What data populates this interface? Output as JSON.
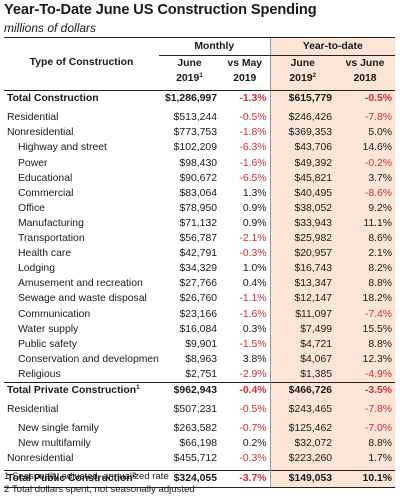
{
  "title": "Year-To-Date June US Construction Spending",
  "subtitle": "millions of dollars",
  "headers": {
    "type": "Type of Construction",
    "monthly": "Monthly",
    "ytd": "Year-to-date",
    "col1_line1": "June",
    "col1_line2": "2019",
    "col1_sup": "1",
    "col2_line1": "vs May",
    "col2_line2": "2019",
    "col3_line1": "June",
    "col3_line2": "2019",
    "col3_sup": "2",
    "col4_line1": "vs June",
    "col4_line2": "2018"
  },
  "rows": [
    {
      "label": "Total Construction",
      "sup": "",
      "june": "$1,286,997",
      "vsmay": "-1.3%",
      "ytd": "$615,779",
      "vsjune": "-0.5%",
      "bold": true,
      "indent": false
    },
    {
      "label": "Residential",
      "sup": "",
      "june": "$513,244",
      "vsmay": "-0.5%",
      "ytd": "$246,426",
      "vsjune": "-7.8%",
      "bold": false,
      "indent": false
    },
    {
      "label": "Nonresidential",
      "sup": "",
      "june": "$773,753",
      "vsmay": "-1.8%",
      "ytd": "$369,353",
      "vsjune": "5.0%",
      "bold": false,
      "indent": false
    },
    {
      "label": "Highway and street",
      "sup": "",
      "june": "$102,209",
      "vsmay": "-6.3%",
      "ytd": "$43,706",
      "vsjune": "14.6%",
      "bold": false,
      "indent": true
    },
    {
      "label": "Power",
      "sup": "",
      "june": "$98,430",
      "vsmay": "-1.6%",
      "ytd": "$49,392",
      "vsjune": "-0.2%",
      "bold": false,
      "indent": true
    },
    {
      "label": "Educational",
      "sup": "",
      "june": "$90,672",
      "vsmay": "-6.5%",
      "ytd": "$45,821",
      "vsjune": "3.7%",
      "bold": false,
      "indent": true
    },
    {
      "label": "Commercial",
      "sup": "",
      "june": "$83,064",
      "vsmay": "1.3%",
      "ytd": "$40,495",
      "vsjune": "-8.6%",
      "bold": false,
      "indent": true
    },
    {
      "label": "Office",
      "sup": "",
      "june": "$78,950",
      "vsmay": "0.9%",
      "ytd": "$38,052",
      "vsjune": "9.2%",
      "bold": false,
      "indent": true
    },
    {
      "label": "Manufacturing",
      "sup": "",
      "june": "$71,132",
      "vsmay": "0.9%",
      "ytd": "$33,943",
      "vsjune": "11.1%",
      "bold": false,
      "indent": true
    },
    {
      "label": "Transportation",
      "sup": "",
      "june": "$56,787",
      "vsmay": "-2.1%",
      "ytd": "$25,982",
      "vsjune": "8.6%",
      "bold": false,
      "indent": true
    },
    {
      "label": "Health care",
      "sup": "",
      "june": "$42,791",
      "vsmay": "-0.3%",
      "ytd": "$20,957",
      "vsjune": "2.1%",
      "bold": false,
      "indent": true
    },
    {
      "label": "Lodging",
      "sup": "",
      "june": "$34,329",
      "vsmay": "1.0%",
      "ytd": "$16,743",
      "vsjune": "8.2%",
      "bold": false,
      "indent": true
    },
    {
      "label": "Amusement and recreation",
      "sup": "",
      "june": "$27,766",
      "vsmay": "0.4%",
      "ytd": "$13,347",
      "vsjune": "8.8%",
      "bold": false,
      "indent": true
    },
    {
      "label": "Sewage and waste disposal",
      "sup": "",
      "june": "$26,760",
      "vsmay": "-1.1%",
      "ytd": "$12,147",
      "vsjune": "18.2%",
      "bold": false,
      "indent": true
    },
    {
      "label": "Communication",
      "sup": "",
      "june": "$23,166",
      "vsmay": "-1.6%",
      "ytd": "$11,097",
      "vsjune": "-7.4%",
      "bold": false,
      "indent": true
    },
    {
      "label": "Water supply",
      "sup": "",
      "june": "$16,084",
      "vsmay": "0.3%",
      "ytd": "$7,499",
      "vsjune": "15.5%",
      "bold": false,
      "indent": true
    },
    {
      "label": "Public safety",
      "sup": "",
      "june": "$9,901",
      "vsmay": "-1.5%",
      "ytd": "$4,721",
      "vsjune": "8.8%",
      "bold": false,
      "indent": true
    },
    {
      "label": "Conservation and development",
      "sup": "",
      "june": "$8,963",
      "vsmay": "3.8%",
      "ytd": "$4,067",
      "vsjune": "12.3%",
      "bold": false,
      "indent": true
    },
    {
      "label": "Religious",
      "sup": "",
      "june": "$2,751",
      "vsmay": "-2.9%",
      "ytd": "$1,385",
      "vsjune": "-4.9%",
      "bold": false,
      "indent": true
    },
    {
      "label": "Total Private Construction",
      "sup": "1",
      "june": "$962,943",
      "vsmay": "-0.4%",
      "ytd": "$466,726",
      "vsjune": "-3.5%",
      "bold": true,
      "indent": false
    },
    {
      "label": "Residential",
      "sup": "",
      "june": "$507,231",
      "vsmay": "-0.5%",
      "ytd": "$243,465",
      "vsjune": "-7.8%",
      "bold": false,
      "indent": false
    },
    {
      "label": "New single family",
      "sup": "",
      "june": "$263,582",
      "vsmay": "-0.7%",
      "ytd": "$125,462",
      "vsjune": "-7.0%",
      "bold": false,
      "indent": true
    },
    {
      "label": "New multifamily",
      "sup": "",
      "june": "$66,198",
      "vsmay": "0.2%",
      "ytd": "$32,072",
      "vsjune": "8.8%",
      "bold": false,
      "indent": true
    },
    {
      "label": "Nonresidential",
      "sup": "",
      "june": "$455,712",
      "vsmay": "-0.3%",
      "ytd": "$223,260",
      "vsjune": "1.7%",
      "bold": false,
      "indent": false
    },
    {
      "label": "Total Public Construction",
      "sup": "2",
      "june": "$324,055",
      "vsmay": "-3.7%",
      "ytd": "$149,053",
      "vsjune": "10.1%",
      "bold": true,
      "indent": false
    }
  ],
  "footnotes": [
    "1 Seasonally adjusted, annualized rate",
    "2 Total dollars spent, not seasonally adjusted"
  ],
  "colors": {
    "negative": "#d03030",
    "ytd_fill": "#fce4d6"
  }
}
